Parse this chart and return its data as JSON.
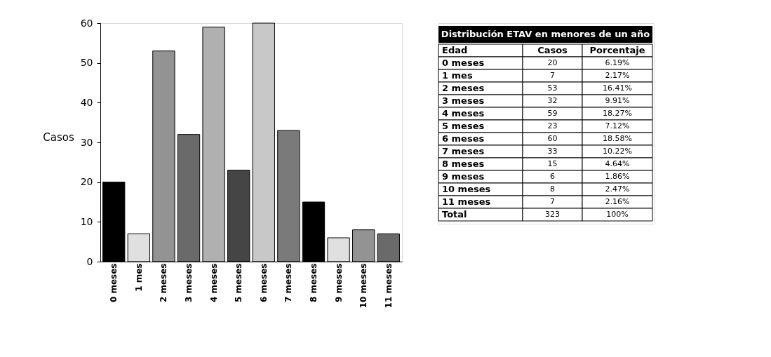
{
  "chart_data": {
    "type": "bar",
    "categories": [
      "0 meses",
      "1 mes",
      "2 meses",
      "3 meses",
      "4 meses",
      "5 meses",
      "6 meses",
      "7 meses",
      "8 meses",
      "9 meses",
      "10 meses",
      "11 meses"
    ],
    "values": [
      20,
      7,
      53,
      32,
      59,
      23,
      60,
      33,
      15,
      6,
      8,
      7
    ],
    "colors": [
      "#000000",
      "#e0e0e0",
      "#939393",
      "#6a6a6a",
      "#b0b0b0",
      "#454545",
      "#c8c8c8",
      "#7a7a7a",
      "#000000",
      "#e0e0e0",
      "#939393",
      "#6a6a6a"
    ],
    "ylabel": "Casos",
    "ylim": [
      0,
      60
    ],
    "yticks": [
      0,
      10,
      20,
      30,
      40,
      50,
      60
    ],
    "grid": false,
    "annotations": [
      "Distribución ETAV en menores de un año",
      "Edad",
      "Casos",
      "Porcentaje",
      "0 meses",
      "20",
      "6.19%",
      "1 mes",
      "7",
      "2.17%",
      "2 meses",
      "53",
      "16.41%",
      "3 meses",
      "32",
      "9.91%",
      "4 meses",
      "59",
      "18.27%",
      "5 meses",
      "23",
      "7.12%",
      "6 meses",
      "60",
      "18.58%",
      "7 meses",
      "33",
      "10.22%",
      "8 meses",
      "15",
      "4.64%",
      "9 meses",
      "6",
      "1.86%",
      "10 meses",
      "8",
      "2.47%",
      "11 meses",
      "7",
      "2.16%",
      "Total",
      "323",
      "100%"
    ]
  }
}
